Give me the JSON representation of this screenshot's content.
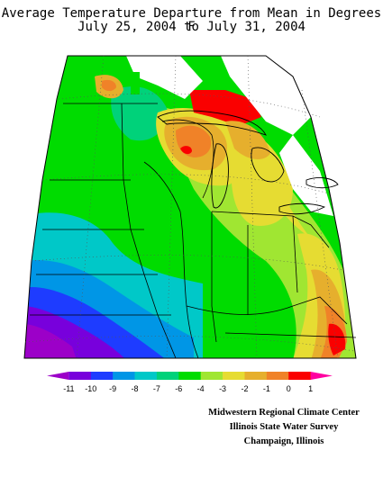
{
  "title_line1": "Average Temperature Departure from Mean in Degrees F",
  "title_line2": "July 25, 2004 to July 31, 2004",
  "legend": {
    "colors": [
      "#9c00c8",
      "#7800dc",
      "#1e3cff",
      "#0096e6",
      "#00c8c8",
      "#00d27a",
      "#00dc00",
      "#a0e632",
      "#e6dc32",
      "#e6af2d",
      "#f08228",
      "#fa0000",
      "#ff00a0"
    ],
    "ticks": [
      "-11",
      "-10",
      "-9",
      "-8",
      "-7",
      "-6",
      "-4",
      "-3",
      "-2",
      "-1",
      "0",
      "1"
    ]
  },
  "credits": {
    "line1": "Midwestern Regional Climate Center",
    "line2": "Illinois State Water Survey",
    "line3": "Champaign, Illinois"
  }
}
